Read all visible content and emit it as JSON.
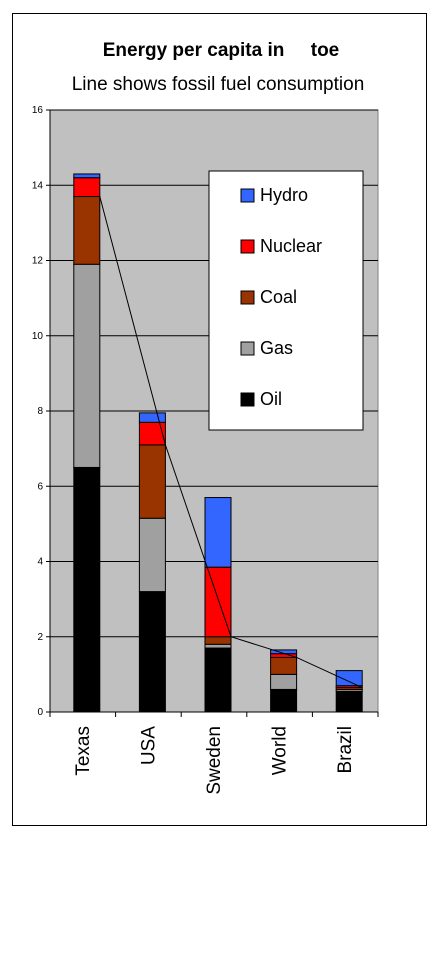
{
  "chart_data": {
    "type": "bar",
    "stacked": true,
    "title": "Energy per capita in     toe",
    "subtitle": "Line shows fossil fuel consumption",
    "categories": [
      "Texas",
      "USA",
      "Sweden",
      "World",
      "Brazil"
    ],
    "ylim": [
      0,
      16
    ],
    "yticks": [
      "0",
      "2",
      "4",
      "6",
      "8",
      "10",
      "12",
      "14",
      "16"
    ],
    "grid": true,
    "legend_position": "top-right",
    "series": [
      {
        "name": "Oil",
        "color": "#000000",
        "values": [
          6.5,
          3.2,
          1.7,
          0.6,
          0.55
        ]
      },
      {
        "name": "Gas",
        "color": "#a0a0a0",
        "values": [
          5.4,
          1.95,
          0.1,
          0.4,
          0.05
        ]
      },
      {
        "name": "Coal",
        "color": "#993300",
        "values": [
          1.8,
          1.95,
          0.2,
          0.45,
          0.05
        ]
      },
      {
        "name": "Nuclear",
        "color": "#ff0000",
        "values": [
          0.5,
          0.6,
          1.85,
          0.1,
          0.05
        ]
      },
      {
        "name": "Hydro",
        "color": "#3366ff",
        "values": [
          0.1,
          0.25,
          1.85,
          0.1,
          0.4
        ]
      }
    ],
    "fossil_line": [
      13.7,
      7.1,
      2.0,
      1.45,
      0.65
    ],
    "legend_order": [
      "Hydro",
      "Nuclear",
      "Coal",
      "Gas",
      "Oil"
    ]
  }
}
